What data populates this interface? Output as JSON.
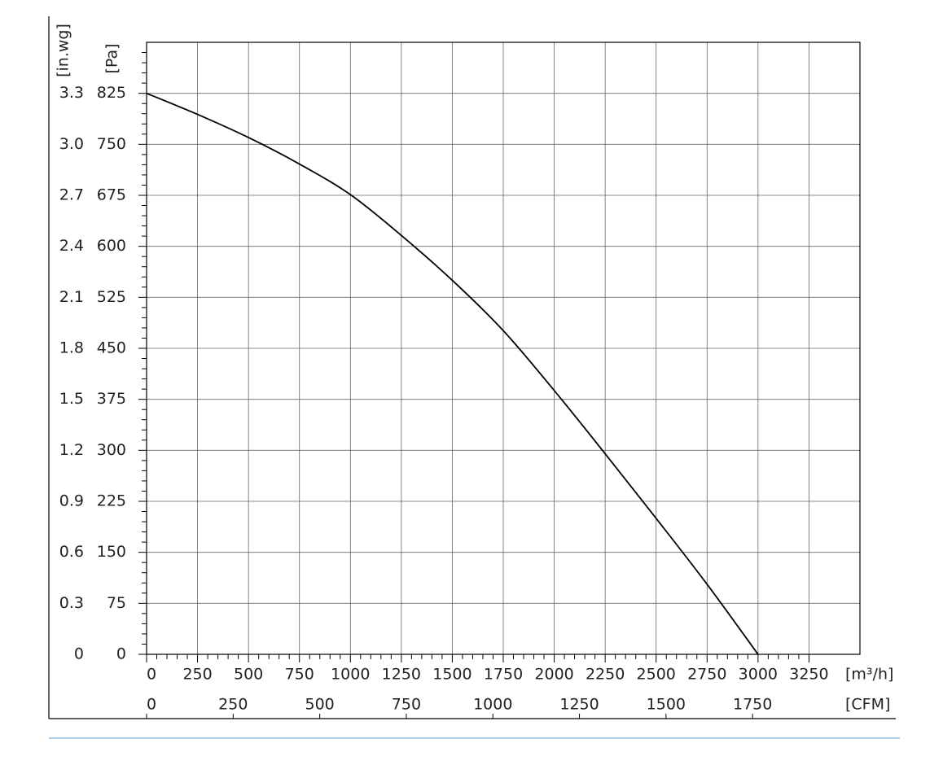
{
  "chart_data": {
    "type": "line",
    "x_label": "[m³/h]",
    "x2_label": "[CFM]",
    "y_label": "[Pa]",
    "y2_label": "[in.wg]",
    "x": [
      0,
      250,
      500,
      750,
      1000,
      1250,
      1500,
      1750,
      2000,
      2250,
      2500,
      2750,
      3000
    ],
    "series": [
      {
        "color": "#000000",
        "values": [
          825,
          794,
          760,
          721,
          676,
          616,
          550,
          476,
          388,
          295,
          200,
          103,
          0
        ]
      }
    ],
    "xlim": [
      0,
      3500
    ],
    "xticks": [
      0,
      250,
      500,
      750,
      1000,
      1250,
      1500,
      1750,
      2000,
      2250,
      2500,
      2750,
      3000,
      3250
    ],
    "x2lim": [
      0,
      2060
    ],
    "x2ticks": [
      0,
      250,
      500,
      750,
      1000,
      1250,
      1500,
      1750
    ],
    "ylim": [
      0,
      900
    ],
    "yticks": [
      0,
      75,
      150,
      225,
      300,
      375,
      450,
      525,
      600,
      675,
      750,
      825
    ],
    "y2lim": [
      0,
      3.6
    ],
    "y2ticks": [
      0,
      0.3,
      0.6,
      0.9,
      1.2,
      1.5,
      1.8,
      2.1,
      2.4,
      2.7,
      {
        "value": 3,
        "label": "3.0"
      },
      3.3
    ],
    "grid": true
  }
}
